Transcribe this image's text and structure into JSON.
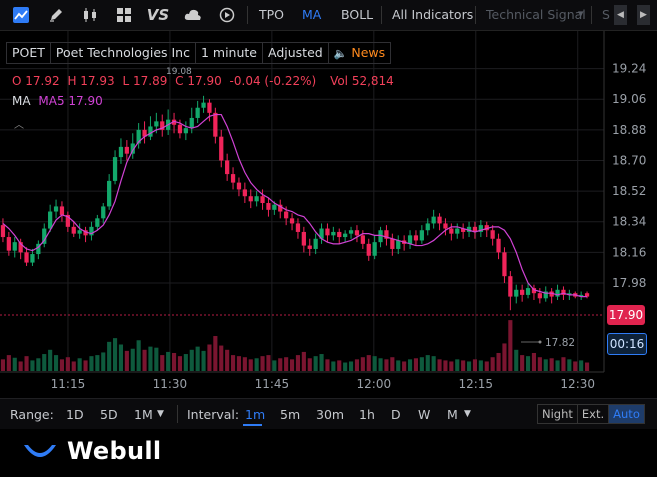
{
  "toolbar": {
    "tools": [
      "line-chart-icon",
      "draw-pen-icon",
      "candlestick-icon",
      "layout-grid-icon",
      "vs-compare-icon",
      "cloud-icon",
      "replay-icon"
    ],
    "vs_label": "VS",
    "indicators": [
      "TPO",
      "MA",
      "BOLL"
    ],
    "all_indicators": "All Indicators",
    "technical_signal": "Technical Signal",
    "technical_signal_arrow": "▾",
    "cut_text": "S"
  },
  "info": {
    "symbol": "POET",
    "name": "Poet Technologies Inc",
    "interval": "1 minute",
    "adjusted": "Adjusted",
    "news": "News"
  },
  "ohlc": {
    "open": "O  17.92",
    "high": "H  17.93",
    "low": "L  17.89",
    "close": "C  17.90",
    "change": "-0.04 (-0.22%)",
    "vol": "Vol  52,814"
  },
  "ma": {
    "label": "MA",
    "ma5": "MA5 17.90"
  },
  "price_axis": [
    "19.24",
    "19.06",
    "18.88",
    "18.70",
    "18.52",
    "18.34",
    "18.16",
    "17.98"
  ],
  "time_axis": [
    "11:15",
    "11:30",
    "11:45",
    "12:00",
    "12:15",
    "12:30"
  ],
  "high_marker": "19.08",
  "low_marker": "17.82",
  "current_price": "17.90",
  "countdown": "00:16",
  "bottom": {
    "range_label": "Range:",
    "ranges": [
      "1D",
      "5D",
      "1M"
    ],
    "interval_label": "Interval:",
    "intervals": [
      "1m",
      "5m",
      "30m",
      "1h",
      "D",
      "W",
      "M"
    ],
    "session": [
      "Night",
      "Ext.",
      "Auto"
    ]
  },
  "footer": {
    "brand": "Webull"
  },
  "colors": {
    "up": "#13a86b",
    "down": "#f0245a",
    "ma5": "#d042d4",
    "accent": "#2f7cf6",
    "news": "#ff8a1e"
  },
  "chart_data": {
    "type": "candlestick",
    "x_ticks": [
      "11:15",
      "11:30",
      "11:45",
      "12:00",
      "12:15",
      "12:30"
    ],
    "y_ticks": [
      19.24,
      19.06,
      18.88,
      18.7,
      18.52,
      18.34,
      18.16,
      17.98
    ],
    "y_range": [
      17.88,
      19.32
    ],
    "grid": true,
    "series": [
      {
        "name": "MA5",
        "values": [
          18.33,
          18.3,
          18.26,
          18.21,
          18.18,
          18.17,
          18.19,
          18.23,
          18.29,
          18.35,
          18.38,
          18.37,
          18.34,
          18.3,
          18.28,
          18.27,
          18.29,
          18.32,
          18.38,
          18.46,
          18.58,
          18.69,
          18.76,
          18.81,
          18.84,
          18.86,
          18.88,
          18.89,
          18.91,
          18.93,
          18.92,
          18.9,
          18.89,
          18.9,
          18.93,
          18.96,
          18.97,
          18.97,
          18.9,
          18.81,
          18.71,
          18.63,
          18.57,
          18.53,
          18.5,
          18.48,
          18.45,
          18.43,
          18.41,
          18.4,
          18.38,
          18.37,
          18.33,
          18.28,
          18.24,
          18.22,
          18.21,
          18.21,
          18.22,
          18.23,
          18.25,
          18.27,
          18.27,
          18.26,
          18.26,
          18.25,
          18.24,
          18.23,
          18.22,
          18.21,
          18.2,
          18.2,
          18.21,
          18.23,
          18.26,
          18.29,
          18.31,
          18.31,
          18.3,
          18.29,
          18.28,
          18.29,
          18.3,
          18.31,
          18.31,
          18.29,
          18.24,
          18.16,
          18.06,
          17.98,
          17.94,
          17.93,
          17.92,
          17.92,
          17.91,
          17.92,
          17.91,
          17.91,
          17.9,
          17.9
        ]
      }
    ],
    "candles": [
      [
        18.32,
        18.25,
        18.36,
        18.22
      ],
      [
        18.25,
        18.17,
        18.28,
        18.14
      ],
      [
        18.17,
        18.22,
        18.25,
        18.13
      ],
      [
        18.22,
        18.16,
        18.24,
        18.12
      ],
      [
        18.16,
        18.1,
        18.19,
        18.08
      ],
      [
        18.1,
        18.15,
        18.18,
        18.08
      ],
      [
        18.15,
        18.21,
        18.23,
        18.12
      ],
      [
        18.21,
        18.3,
        18.33,
        18.19
      ],
      [
        18.3,
        18.4,
        18.44,
        18.28
      ],
      [
        18.4,
        18.43,
        18.47,
        18.36
      ],
      [
        18.43,
        18.38,
        18.46,
        18.34
      ],
      [
        18.38,
        18.31,
        18.4,
        18.28
      ],
      [
        18.31,
        18.27,
        18.34,
        18.25
      ],
      [
        18.27,
        18.29,
        18.33,
        18.24
      ],
      [
        18.29,
        18.26,
        18.31,
        18.22
      ],
      [
        18.26,
        18.31,
        18.34,
        18.23
      ],
      [
        18.31,
        18.36,
        18.38,
        18.29
      ],
      [
        18.36,
        18.43,
        18.45,
        18.33
      ],
      [
        18.43,
        18.58,
        18.62,
        18.41
      ],
      [
        18.58,
        18.72,
        18.76,
        18.56
      ],
      [
        18.72,
        18.78,
        18.83,
        18.68
      ],
      [
        18.78,
        18.74,
        18.82,
        18.7
      ],
      [
        18.74,
        18.8,
        18.86,
        18.71
      ],
      [
        18.8,
        18.88,
        18.92,
        18.77
      ],
      [
        18.88,
        18.84,
        18.93,
        18.8
      ],
      [
        18.84,
        18.9,
        18.96,
        18.82
      ],
      [
        18.9,
        18.93,
        18.98,
        18.86
      ],
      [
        18.93,
        18.88,
        18.97,
        18.84
      ],
      [
        18.88,
        18.94,
        19.0,
        18.85
      ],
      [
        18.94,
        18.91,
        18.98,
        18.86
      ],
      [
        18.91,
        18.86,
        18.94,
        18.83
      ],
      [
        18.86,
        18.89,
        18.93,
        18.82
      ],
      [
        18.89,
        18.95,
        19.01,
        18.86
      ],
      [
        18.95,
        19.01,
        19.05,
        18.92
      ],
      [
        19.01,
        19.04,
        19.08,
        18.98
      ],
      [
        19.04,
        18.98,
        19.06,
        18.93
      ],
      [
        18.98,
        18.84,
        19.01,
        18.8
      ],
      [
        18.84,
        18.7,
        18.88,
        18.66
      ],
      [
        18.7,
        18.62,
        18.74,
        18.58
      ],
      [
        18.62,
        18.57,
        18.66,
        18.53
      ],
      [
        18.57,
        18.53,
        18.6,
        18.49
      ],
      [
        18.53,
        18.49,
        18.57,
        18.45
      ],
      [
        18.49,
        18.46,
        18.53,
        18.42
      ],
      [
        18.46,
        18.49,
        18.52,
        18.43
      ],
      [
        18.49,
        18.45,
        18.53,
        18.41
      ],
      [
        18.45,
        18.41,
        18.48,
        18.37
      ],
      [
        18.41,
        18.44,
        18.46,
        18.38
      ],
      [
        18.44,
        18.4,
        18.47,
        18.36
      ],
      [
        18.4,
        18.36,
        18.43,
        18.32
      ],
      [
        18.36,
        18.33,
        18.39,
        18.29
      ],
      [
        18.33,
        18.28,
        18.36,
        18.24
      ],
      [
        18.28,
        18.2,
        18.31,
        18.16
      ],
      [
        18.2,
        18.18,
        18.24,
        18.14
      ],
      [
        18.18,
        18.24,
        18.27,
        18.15
      ],
      [
        18.24,
        18.3,
        18.33,
        18.21
      ],
      [
        18.3,
        18.26,
        18.33,
        18.22
      ],
      [
        18.26,
        18.28,
        18.31,
        18.23
      ],
      [
        18.28,
        18.25,
        18.3,
        18.21
      ],
      [
        18.25,
        18.27,
        18.29,
        18.22
      ],
      [
        18.27,
        18.29,
        18.31,
        18.24
      ],
      [
        18.29,
        18.26,
        18.32,
        18.22
      ],
      [
        18.26,
        18.21,
        18.29,
        18.18
      ],
      [
        18.21,
        18.14,
        18.24,
        18.11
      ],
      [
        18.14,
        18.22,
        18.26,
        18.12
      ],
      [
        18.22,
        18.29,
        18.31,
        18.19
      ],
      [
        18.29,
        18.24,
        18.32,
        18.2
      ],
      [
        18.24,
        18.18,
        18.27,
        18.14
      ],
      [
        18.18,
        18.23,
        18.26,
        18.15
      ],
      [
        18.23,
        18.21,
        18.26,
        18.17
      ],
      [
        18.21,
        18.26,
        18.29,
        18.18
      ],
      [
        18.26,
        18.23,
        18.29,
        18.2
      ],
      [
        18.23,
        18.29,
        18.32,
        18.21
      ],
      [
        18.29,
        18.33,
        18.36,
        18.26
      ],
      [
        18.33,
        18.37,
        18.41,
        18.3
      ],
      [
        18.37,
        18.33,
        18.39,
        18.29
      ],
      [
        18.33,
        18.3,
        18.36,
        18.26
      ],
      [
        18.3,
        18.27,
        18.33,
        18.23
      ],
      [
        18.27,
        18.3,
        18.33,
        18.24
      ],
      [
        18.3,
        18.28,
        18.33,
        18.24
      ],
      [
        18.28,
        18.31,
        18.34,
        18.25
      ],
      [
        18.31,
        18.28,
        18.34,
        18.24
      ],
      [
        18.28,
        18.32,
        18.35,
        18.25
      ],
      [
        18.32,
        18.29,
        18.34,
        18.25
      ],
      [
        18.29,
        18.24,
        18.32,
        18.2
      ],
      [
        18.24,
        18.16,
        18.27,
        18.12
      ],
      [
        18.16,
        18.02,
        18.19,
        17.98
      ],
      [
        18.02,
        17.9,
        18.05,
        17.82
      ],
      [
        17.9,
        17.94,
        17.97,
        17.86
      ],
      [
        17.94,
        17.91,
        17.97,
        17.87
      ],
      [
        17.91,
        17.95,
        17.98,
        17.89
      ],
      [
        17.95,
        17.92,
        17.97,
        17.88
      ],
      [
        17.92,
        17.89,
        17.95,
        17.86
      ],
      [
        17.89,
        17.93,
        17.96,
        17.87
      ],
      [
        17.93,
        17.9,
        17.95,
        17.86
      ],
      [
        17.9,
        17.94,
        17.97,
        17.88
      ],
      [
        17.94,
        17.91,
        17.96,
        17.88
      ],
      [
        17.91,
        17.92,
        17.94,
        17.88
      ],
      [
        17.92,
        17.9,
        17.93,
        17.89
      ],
      [
        17.9,
        17.91,
        17.93,
        17.88
      ],
      [
        17.92,
        17.9,
        17.93,
        17.89
      ]
    ],
    "volume": [
      0.22,
      0.3,
      0.25,
      0.18,
      0.28,
      0.2,
      0.24,
      0.32,
      0.4,
      0.3,
      0.22,
      0.26,
      0.18,
      0.24,
      0.2,
      0.28,
      0.3,
      0.35,
      0.55,
      0.62,
      0.5,
      0.38,
      0.42,
      0.58,
      0.4,
      0.46,
      0.44,
      0.3,
      0.36,
      0.34,
      0.28,
      0.32,
      0.4,
      0.46,
      0.38,
      0.5,
      0.66,
      0.48,
      0.4,
      0.3,
      0.28,
      0.26,
      0.22,
      0.24,
      0.28,
      0.3,
      0.2,
      0.24,
      0.26,
      0.22,
      0.3,
      0.36,
      0.24,
      0.28,
      0.32,
      0.22,
      0.18,
      0.2,
      0.16,
      0.18,
      0.22,
      0.26,
      0.3,
      0.28,
      0.24,
      0.22,
      0.26,
      0.2,
      0.18,
      0.22,
      0.24,
      0.26,
      0.3,
      0.28,
      0.22,
      0.2,
      0.18,
      0.22,
      0.2,
      0.18,
      0.22,
      0.2,
      0.18,
      0.26,
      0.34,
      0.52,
      0.96,
      0.4,
      0.3,
      0.28,
      0.34,
      0.26,
      0.22,
      0.24,
      0.2,
      0.26,
      0.22,
      0.18,
      0.2,
      0.16
    ]
  }
}
